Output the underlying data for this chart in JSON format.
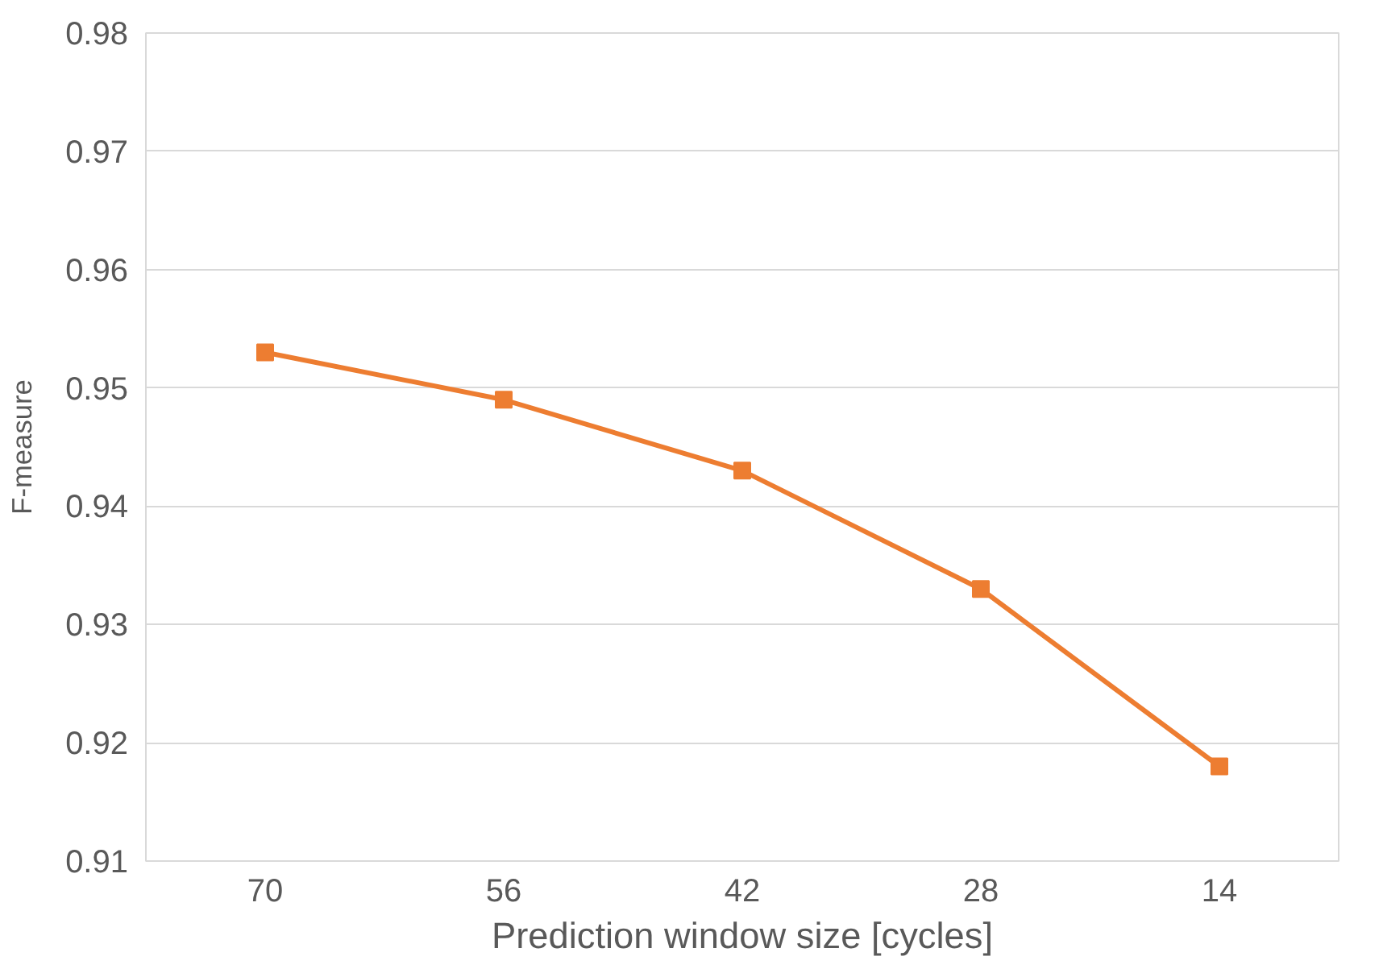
{
  "chart_data": {
    "type": "line",
    "xlabel": "Prediction window size [cycles]",
    "ylabel": "F-measure",
    "categories": [
      "70",
      "56",
      "42",
      "28",
      "14"
    ],
    "series": [
      {
        "color": "#ed7d31",
        "values": [
          0.953,
          0.949,
          0.943,
          0.933,
          0.918
        ]
      }
    ],
    "ylim": [
      0.91,
      0.98
    ],
    "yticks": [
      0.91,
      0.92,
      0.93,
      0.94,
      0.95,
      0.96,
      0.97,
      0.98
    ],
    "grid": "y",
    "marker": "square",
    "line_style": "solid"
  }
}
